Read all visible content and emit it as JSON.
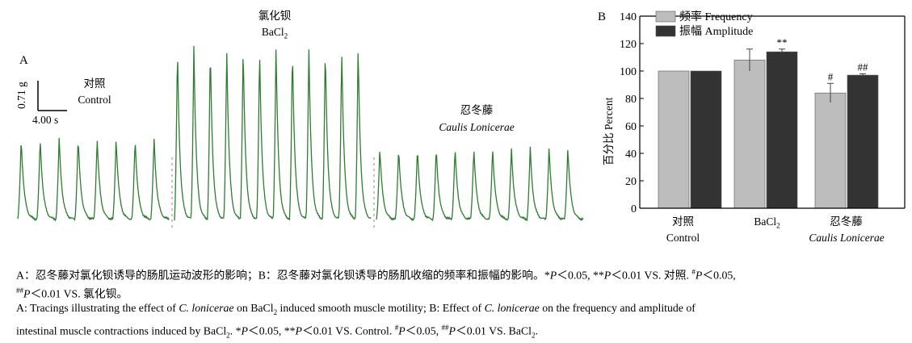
{
  "panel_a": {
    "letter": "A",
    "scale_y": "0.71 g",
    "scale_x": "4.00 s",
    "control_cn": "对照",
    "control_en": "Control",
    "bacl2_cn": "氯化钡",
    "bacl2_en": "BaCl",
    "bacl2_sub": "2",
    "herb_cn": "忍冬藤",
    "herb_en": "Caulis Lonicerae",
    "trace_color": "#2e7d32"
  },
  "panel_b": {
    "letter": "B",
    "legend": [
      {
        "label": "频率 Frequency",
        "color": "#bdbdbd"
      },
      {
        "label": "振幅 Amplitude",
        "color": "#333333"
      }
    ],
    "ylabel": "百分比 Percent",
    "xlabels": [
      {
        "cn": "对照",
        "en": "Control",
        "en_italic": false,
        "sub": ""
      },
      {
        "cn": "",
        "en": "BaCl",
        "en_italic": false,
        "sub": "2"
      },
      {
        "cn": "忍冬藤",
        "en": "Caulis Lonicerae",
        "en_italic": true,
        "sub": ""
      }
    ]
  },
  "chart_data": {
    "type": "bar",
    "categories": [
      "对照 Control",
      "BaCl2",
      "忍冬藤 Caulis Lonicerae"
    ],
    "series": [
      {
        "name": "频率 Frequency",
        "values": [
          100,
          108,
          84
        ],
        "errors": [
          0,
          8,
          7
        ],
        "color": "#bdbdbd",
        "annotations": [
          "",
          "",
          "#"
        ]
      },
      {
        "name": "振幅 Amplitude",
        "values": [
          100,
          114,
          97
        ],
        "errors": [
          0,
          2,
          1
        ],
        "color": "#333333",
        "annotations": [
          "",
          "**",
          "##"
        ]
      }
    ],
    "ylim": [
      0,
      140
    ],
    "yticks": [
      0,
      20,
      40,
      60,
      80,
      100,
      120,
      140
    ],
    "ylabel": "百分比 Percent",
    "legend_position": "top-left",
    "grid": false
  },
  "caption": {
    "cn_line1": "A：忍冬藤对氯化钡诱导的肠肌运动波形的影响；B：忍冬藤对氯化钡诱导的肠肌收缩的频率和振幅的影响。*P＜0.05, **P＜0.01 VS. 对照. #P＜0.05,",
    "cn_line2": "##P＜0.01 VS. 氯化钡。",
    "en_line1": "A: Tracings illustrating the effect of C. lonicerae on BaCl2 induced smooth muscle motility; B: Effect of C. lonicerae on the frequency and amplitude of",
    "en_line2": "intestinal muscle contractions induced by BaCl2. *P＜0.05, **P＜0.01 VS. Control. #P＜0.05, ##P＜0.01 VS. BaCl2."
  }
}
